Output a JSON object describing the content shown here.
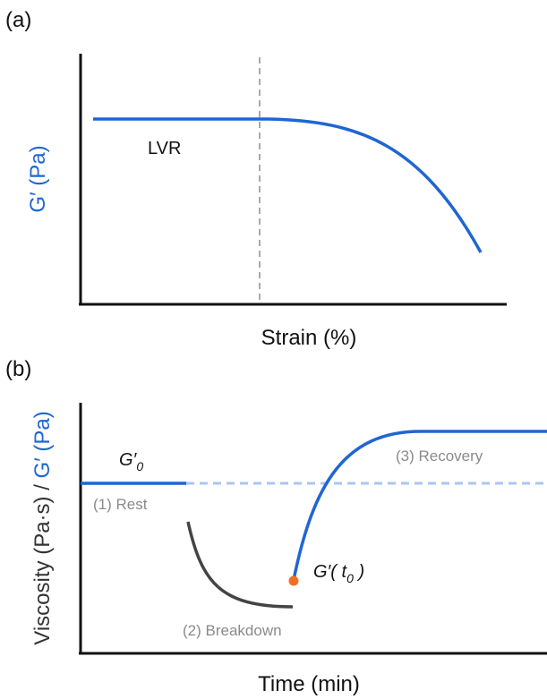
{
  "panel_a": {
    "tag": "(a)",
    "y_label": "G′ (Pa)",
    "region_label": "LVR",
    "x_label": "Strain (%)"
  },
  "panel_b": {
    "tag": "(b)",
    "y_label_viscosity": "Viscosity (Pa·s) / ",
    "y_label_modulus": "G′ (Pa)",
    "g0": {
      "main": "G′",
      "sub": "0"
    },
    "rest": "(1) Rest",
    "breakdown": "(2) Breakdown",
    "recovery": "(3) Recovery",
    "gt0": {
      "main": "G′( t",
      "sub": "0",
      "end": " )"
    },
    "x_label": "Time (min)"
  }
}
